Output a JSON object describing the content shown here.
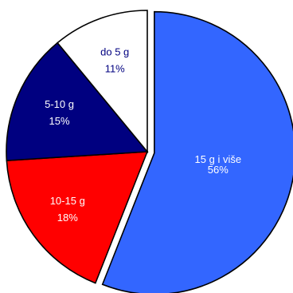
{
  "chart_data": {
    "type": "pie",
    "title": "",
    "slices": [
      {
        "name": "15 g i više",
        "value": 56,
        "value_label": "56%",
        "color": "#3366ff",
        "label_color": "#ffffff"
      },
      {
        "name": "10-15 g",
        "value": 18,
        "value_label": "18%",
        "color": "#ff0000",
        "label_color": "#ffffff"
      },
      {
        "name": "5-10 g",
        "value": 15,
        "value_label": "15%",
        "color": "#000080",
        "label_color": "#ffffff"
      },
      {
        "name": "do 5 g",
        "value": 11,
        "value_label": "11%",
        "color": "#ffffff",
        "label_color": "#000080"
      }
    ],
    "start": "12 o'clock",
    "direction": "clockwise",
    "exploded_slice": "15 g i više",
    "legend": "none"
  }
}
